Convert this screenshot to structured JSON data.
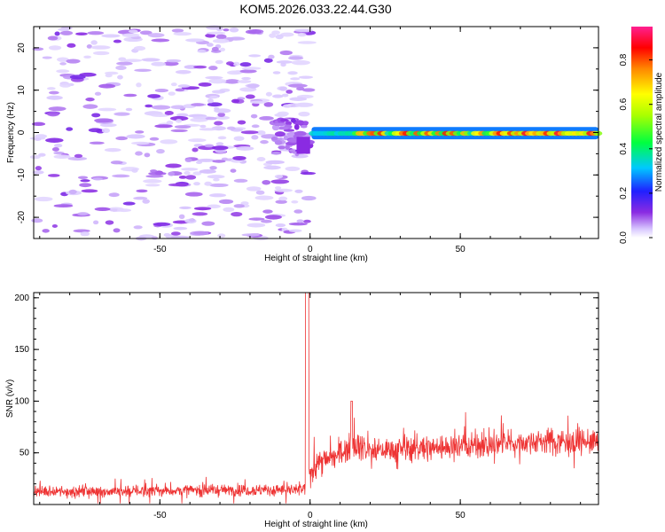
{
  "title": "KOM5.2026.033.22.44.G30",
  "chart_data": [
    {
      "type": "heatmap",
      "xlabel": "Height of straight line (km)",
      "ylabel": "Frequency (Hz)",
      "xlim": [
        -92,
        96
      ],
      "ylim": [
        -25,
        25
      ],
      "xticks": [
        -50,
        0,
        50
      ],
      "yticks": [
        -20,
        -10,
        0,
        10,
        20
      ],
      "colorbar": {
        "label": "Normalized spectral amplitude",
        "range": [
          0,
          0.95
        ],
        "ticks": [
          0.0,
          0.2,
          0.4,
          0.6,
          0.8
        ],
        "tick_labels": [
          "0.0",
          "0.2",
          "0.4",
          "0.6",
          "0.8"
        ]
      },
      "features": [
        {
          "description": "scattered low-amplitude noise",
          "x_range": [
            -92,
            0
          ],
          "y_range": [
            -25,
            25
          ],
          "amplitude": 0.1
        },
        {
          "description": "strong signal band near 0 Hz",
          "x_range": [
            0,
            96
          ],
          "y_center": 0,
          "amplitude_range": [
            0.4,
            0.95
          ]
        }
      ]
    },
    {
      "type": "line",
      "xlabel": "Height of straight line (km)",
      "ylabel": "SNR (v/v)",
      "xlim": [
        -92,
        96
      ],
      "ylim": [
        0,
        205
      ],
      "xticks": [
        -50,
        0,
        50
      ],
      "yticks": [
        50,
        100,
        150,
        200
      ],
      "color": "#ee3333",
      "series": [
        {
          "x": [
            -92,
            -60,
            -30,
            -5,
            -1,
            0,
            2,
            10,
            14,
            20,
            40,
            60,
            80,
            96
          ],
          "y": [
            12,
            13,
            14,
            14,
            205,
            30,
            40,
            48,
            60,
            52,
            55,
            58,
            62,
            60
          ]
        }
      ]
    }
  ]
}
